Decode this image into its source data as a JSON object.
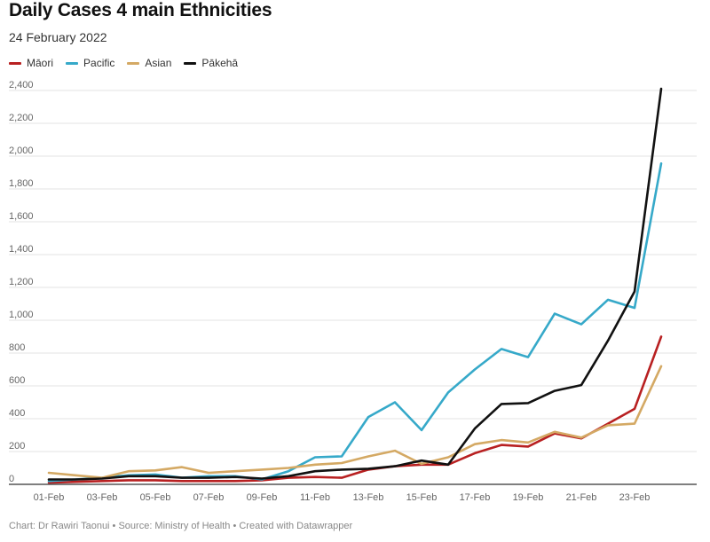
{
  "header": {
    "title": "Daily Cases 4 main Ethnicities",
    "subtitle": "24 February 2022"
  },
  "footer": {
    "credit": "Chart: Dr Rawiri Taonui • Source: Ministry of Health • Created with Datawrapper"
  },
  "chart_data": {
    "type": "line",
    "title": "Daily Cases 4 main Ethnicities",
    "subtitle": "24 February 2022",
    "xlabel": "",
    "ylabel": "",
    "x": [
      "01-Feb",
      "02-Feb",
      "03-Feb",
      "04-Feb",
      "05-Feb",
      "06-Feb",
      "07-Feb",
      "08-Feb",
      "09-Feb",
      "10-Feb",
      "11-Feb",
      "12-Feb",
      "13-Feb",
      "14-Feb",
      "15-Feb",
      "16-Feb",
      "17-Feb",
      "18-Feb",
      "19-Feb",
      "20-Feb",
      "21-Feb",
      "22-Feb",
      "23-Feb",
      "24-Feb"
    ],
    "x_tick_labels": [
      "01-Feb",
      "03-Feb",
      "05-Feb",
      "07-Feb",
      "09-Feb",
      "11-Feb",
      "13-Feb",
      "15-Feb",
      "17-Feb",
      "19-Feb",
      "21-Feb",
      "23-Feb"
    ],
    "ylim": [
      0,
      2400
    ],
    "y_ticks": [
      0,
      200,
      400,
      600,
      800,
      1000,
      1200,
      1400,
      1600,
      1800,
      2000,
      2200,
      2400
    ],
    "y_tick_labels": [
      "0",
      "200",
      "400",
      "600",
      "800",
      "1,000",
      "1,200",
      "1,400",
      "1,600",
      "1,800",
      "2,000",
      "2,200",
      "2,400"
    ],
    "grid": "horizontal",
    "legend_position": "top-left",
    "series": [
      {
        "name": "Māori",
        "color": "#b82021",
        "values": [
          10,
          15,
          20,
          25,
          25,
          20,
          20,
          20,
          25,
          40,
          45,
          40,
          90,
          110,
          120,
          120,
          190,
          240,
          230,
          310,
          280,
          370,
          460,
          900
        ]
      },
      {
        "name": "Pacific",
        "color": "#36a9c9",
        "values": [
          20,
          30,
          40,
          55,
          60,
          40,
          50,
          50,
          30,
          80,
          165,
          170,
          410,
          500,
          330,
          560,
          700,
          825,
          775,
          1040,
          975,
          1125,
          1075,
          1955
        ]
      },
      {
        "name": "Asian",
        "color": "#d4a964",
        "values": [
          70,
          55,
          40,
          80,
          85,
          105,
          70,
          80,
          90,
          100,
          120,
          130,
          170,
          205,
          125,
          165,
          245,
          270,
          255,
          320,
          285,
          360,
          370,
          720
        ]
      },
      {
        "name": "Pākehā",
        "color": "#111111",
        "values": [
          30,
          30,
          35,
          50,
          50,
          40,
          40,
          45,
          35,
          50,
          80,
          90,
          95,
          110,
          145,
          120,
          340,
          490,
          495,
          570,
          605,
          875,
          1175,
          2410
        ]
      }
    ]
  }
}
